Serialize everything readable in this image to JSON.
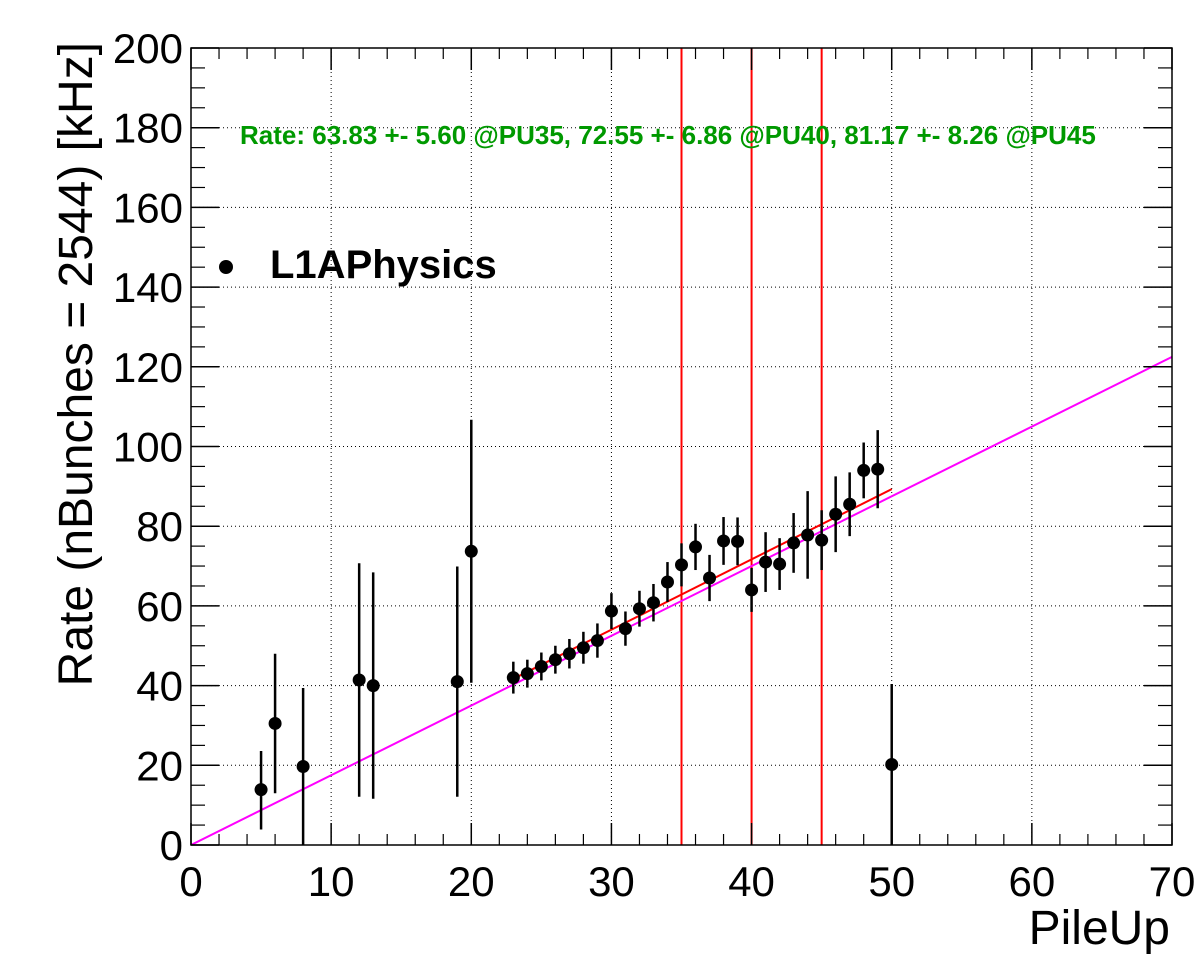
{
  "chart_data": {
    "type": "scatter",
    "title": "",
    "xlabel": "PileUp",
    "ylabel": "Rate (nBunches = 2544) [kHz]",
    "xlim": [
      0,
      70
    ],
    "ylim": [
      0,
      200
    ],
    "xticks": [
      0,
      10,
      20,
      30,
      40,
      50,
      60,
      70
    ],
    "xtick_labels": [
      "0",
      "10",
      "20",
      "30",
      "40",
      "50",
      "60",
      "70"
    ],
    "yticks": [
      0,
      20,
      40,
      60,
      80,
      100,
      120,
      140,
      160,
      180,
      200
    ],
    "ytick_labels": [
      "0",
      "20",
      "40",
      "60",
      "80",
      "100",
      "120",
      "140",
      "160",
      "180",
      "200"
    ],
    "grid": true,
    "legend": {
      "placement": "top-left",
      "entries": [
        "L1APhysics"
      ]
    },
    "annotation": {
      "text": "Rate: 63.83 +- 5.60 @PU35, 72.55 +- 6.86 @PU40, 81.17 +- 8.26 @PU45",
      "color": "#009900"
    },
    "series": [
      {
        "name": "L1APhysics",
        "color": "#000000",
        "points": [
          {
            "x": 5,
            "y": 13.9,
            "err_low": 10.0,
            "err_high": 9.7
          },
          {
            "x": 6,
            "y": 30.5,
            "err_low": 17.5,
            "err_high": 17.5
          },
          {
            "x": 8,
            "y": 19.7,
            "err_low": 19.7,
            "err_high": 19.7
          },
          {
            "x": 12,
            "y": 41.4,
            "err_low": 29.3,
            "err_high": 29.3
          },
          {
            "x": 13,
            "y": 40.0,
            "err_low": 28.4,
            "err_high": 28.4
          },
          {
            "x": 19,
            "y": 41.0,
            "err_low": 28.9,
            "err_high": 28.9
          },
          {
            "x": 20,
            "y": 73.7,
            "err_low": 33.0,
            "err_high": 33.0
          },
          {
            "x": 23,
            "y": 42.0,
            "err_low": 4.0,
            "err_high": 4.0
          },
          {
            "x": 24,
            "y": 43.0,
            "err_low": 3.5,
            "err_high": 3.5
          },
          {
            "x": 25,
            "y": 44.8,
            "err_low": 3.5,
            "err_high": 3.5
          },
          {
            "x": 26,
            "y": 46.5,
            "err_low": 3.5,
            "err_high": 3.5
          },
          {
            "x": 27,
            "y": 48.0,
            "err_low": 3.7,
            "err_high": 3.7
          },
          {
            "x": 28,
            "y": 49.5,
            "err_low": 4.0,
            "err_high": 4.0
          },
          {
            "x": 29,
            "y": 51.3,
            "err_low": 4.3,
            "err_high": 4.3
          },
          {
            "x": 30,
            "y": 58.7,
            "err_low": 4.5,
            "err_high": 4.5
          },
          {
            "x": 31,
            "y": 54.3,
            "err_low": 4.3,
            "err_high": 4.3
          },
          {
            "x": 32,
            "y": 59.3,
            "err_low": 4.5,
            "err_high": 4.5
          },
          {
            "x": 33,
            "y": 60.8,
            "err_low": 4.7,
            "err_high": 4.7
          },
          {
            "x": 34,
            "y": 66.0,
            "err_low": 5.0,
            "err_high": 5.0
          },
          {
            "x": 35,
            "y": 70.3,
            "err_low": 5.4,
            "err_high": 5.4
          },
          {
            "x": 36,
            "y": 74.8,
            "err_low": 5.8,
            "err_high": 5.8
          },
          {
            "x": 37,
            "y": 67.0,
            "err_low": 5.8,
            "err_high": 5.8
          },
          {
            "x": 38,
            "y": 76.3,
            "err_low": 6.0,
            "err_high": 6.0
          },
          {
            "x": 39,
            "y": 76.2,
            "err_low": 6.0,
            "err_high": 6.0
          },
          {
            "x": 40,
            "y": 64.0,
            "err_low": 5.5,
            "err_high": 5.5
          },
          {
            "x": 41,
            "y": 71.0,
            "err_low": 7.5,
            "err_high": 7.5
          },
          {
            "x": 42,
            "y": 70.5,
            "err_low": 6.5,
            "err_high": 6.5
          },
          {
            "x": 43,
            "y": 75.8,
            "err_low": 7.5,
            "err_high": 7.5
          },
          {
            "x": 44,
            "y": 77.8,
            "err_low": 11.0,
            "err_high": 11.0
          },
          {
            "x": 45,
            "y": 76.5,
            "err_low": 7.5,
            "err_high": 7.5
          },
          {
            "x": 46,
            "y": 83.0,
            "err_low": 9.5,
            "err_high": 9.5
          },
          {
            "x": 47,
            "y": 85.5,
            "err_low": 8.0,
            "err_high": 8.0
          },
          {
            "x": 48,
            "y": 94.0,
            "err_low": 7.0,
            "err_high": 7.0
          },
          {
            "x": 49,
            "y": 94.3,
            "err_low": 9.8,
            "err_high": 9.8
          },
          {
            "x": 50,
            "y": 20.2,
            "err_low": 20.2,
            "err_high": 20.2
          }
        ]
      }
    ],
    "fit_lines": [
      {
        "color": "#ff00ff",
        "x": [
          0,
          70
        ],
        "y": [
          0,
          122.5
        ]
      },
      {
        "color": "#ff0000",
        "x": [
          23,
          50
        ],
        "y": [
          41.7,
          89.3
        ]
      }
    ],
    "vertical_lines": [
      {
        "x": 35,
        "color": "#ff0000"
      },
      {
        "x": 40,
        "color": "#ff0000"
      },
      {
        "x": 45,
        "color": "#ff0000"
      }
    ]
  }
}
